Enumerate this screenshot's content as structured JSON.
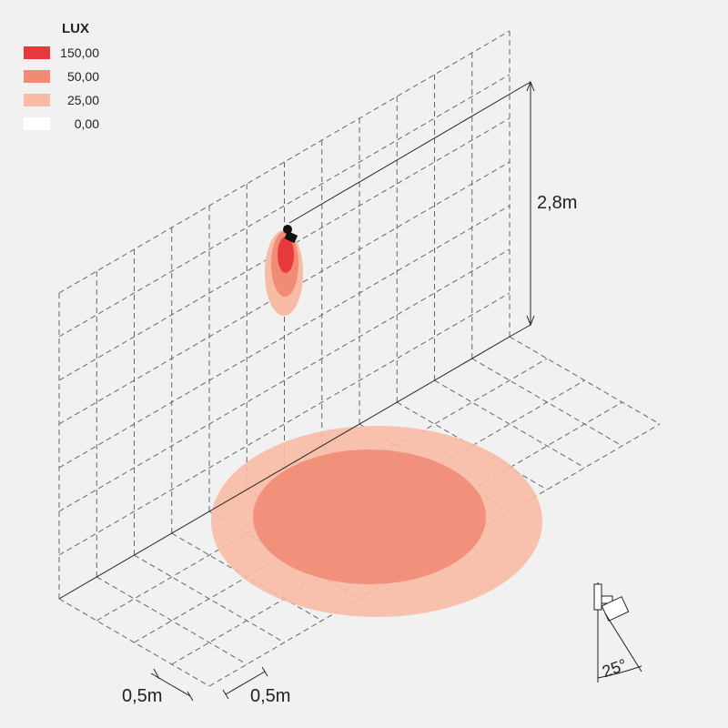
{
  "legend": {
    "title": "LUX",
    "items": [
      {
        "label": "150,00",
        "color": "#e8383c"
      },
      {
        "label": "50,00",
        "color": "#f08b75"
      },
      {
        "label": "25,00",
        "color": "#f8bba6"
      },
      {
        "label": "0,00",
        "color": "#ffffff"
      }
    ]
  },
  "dimensions": {
    "height": "2,8m",
    "grid_x": "0,5m",
    "grid_y": "0,5m",
    "tilt": "25°"
  }
}
